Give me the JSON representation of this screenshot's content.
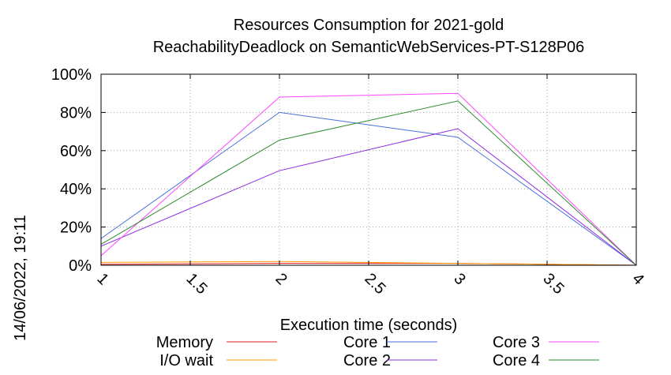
{
  "chart_data": {
    "type": "line",
    "title_line1": "Resources Consumption for 2021-gold",
    "title_line2": "ReachabilityDeadlock on SemanticWebServices-PT-S128P06",
    "xlabel": "Execution time (seconds)",
    "side_label": "14/06/2022, 19:11",
    "xlim": [
      1,
      4
    ],
    "ylim": [
      0,
      100
    ],
    "x_ticks": [
      "1",
      "1.5",
      "2",
      "2.5",
      "3",
      "3.5",
      "4"
    ],
    "y_ticks": [
      "0%",
      "20%",
      "40%",
      "60%",
      "80%",
      "100%"
    ],
    "grid": true,
    "legend_position": "bottom",
    "x": [
      1,
      2,
      3,
      4
    ],
    "series": [
      {
        "name": "Memory",
        "color": "#e41a1c",
        "values": [
          0.5,
          1,
          1,
          0
        ]
      },
      {
        "name": "I/O wait",
        "color": "#ff9900",
        "values": [
          1.5,
          2,
          1,
          0
        ]
      },
      {
        "name": "Core 1",
        "color": "#4a6fd8",
        "values": [
          14,
          80,
          67,
          0
        ]
      },
      {
        "name": "Core 2",
        "color": "#8b2be2",
        "values": [
          10,
          49.5,
          71.5,
          0
        ]
      },
      {
        "name": "Core 3",
        "color": "#ff44ff",
        "values": [
          5,
          88,
          90,
          0
        ]
      },
      {
        "name": "Core 4",
        "color": "#2e8b2e",
        "values": [
          11,
          65.5,
          86,
          0
        ]
      }
    ]
  }
}
